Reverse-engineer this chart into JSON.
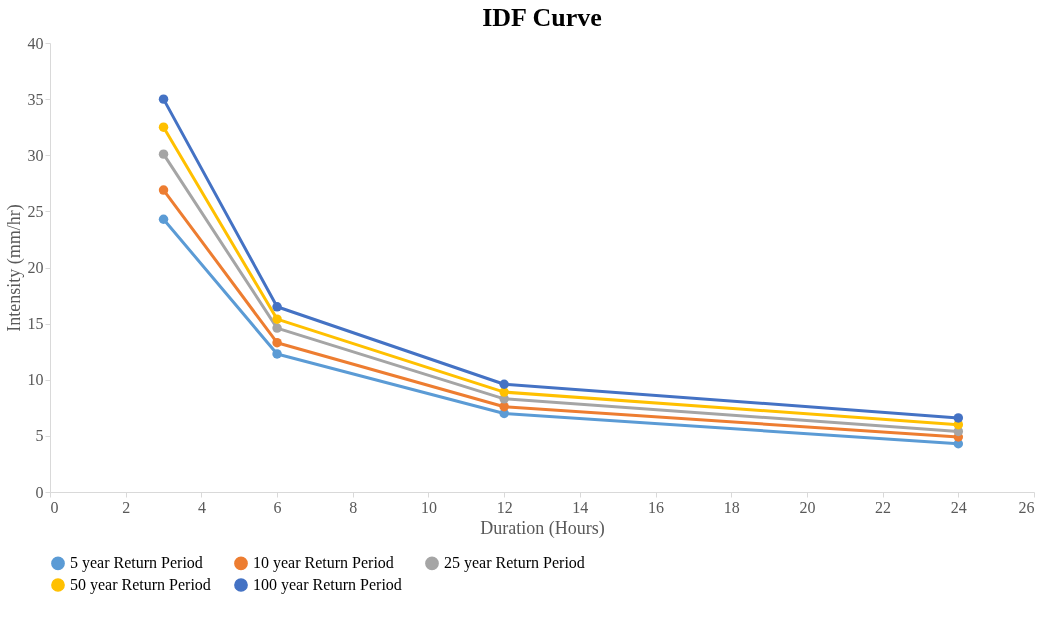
{
  "chart_data": {
    "type": "line",
    "title": "IDF Curve",
    "xlabel": "Duration (Hours)",
    "ylabel": "Intensity (mm/hr)",
    "x": [
      3,
      6,
      12,
      24
    ],
    "series": [
      {
        "name": "5 year Return Period",
        "color": "#5b9bd5",
        "values": [
          24.3,
          12.3,
          7.0,
          4.3
        ]
      },
      {
        "name": "10 year Return Period",
        "color": "#ed7d31",
        "values": [
          26.9,
          13.3,
          7.6,
          4.9
        ]
      },
      {
        "name": "25 year Return Period",
        "color": "#a5a5a5",
        "values": [
          30.1,
          14.6,
          8.3,
          5.4
        ]
      },
      {
        "name": "50 year Return Period",
        "color": "#ffc000",
        "values": [
          32.5,
          15.4,
          8.9,
          6.0
        ]
      },
      {
        "name": "100 year Return Period",
        "color": "#4472c4",
        "values": [
          35.0,
          16.5,
          9.6,
          6.6
        ]
      }
    ],
    "xlim": [
      0,
      26
    ],
    "xticks": [
      0,
      2,
      4,
      6,
      8,
      10,
      12,
      14,
      16,
      18,
      20,
      22,
      24,
      26
    ],
    "ylim": [
      0,
      40
    ],
    "yticks": [
      0,
      5,
      10,
      15,
      20,
      25,
      30,
      35,
      40
    ],
    "grid": false,
    "legend": "bottom",
    "marker": "circle",
    "line_style": "solid"
  }
}
